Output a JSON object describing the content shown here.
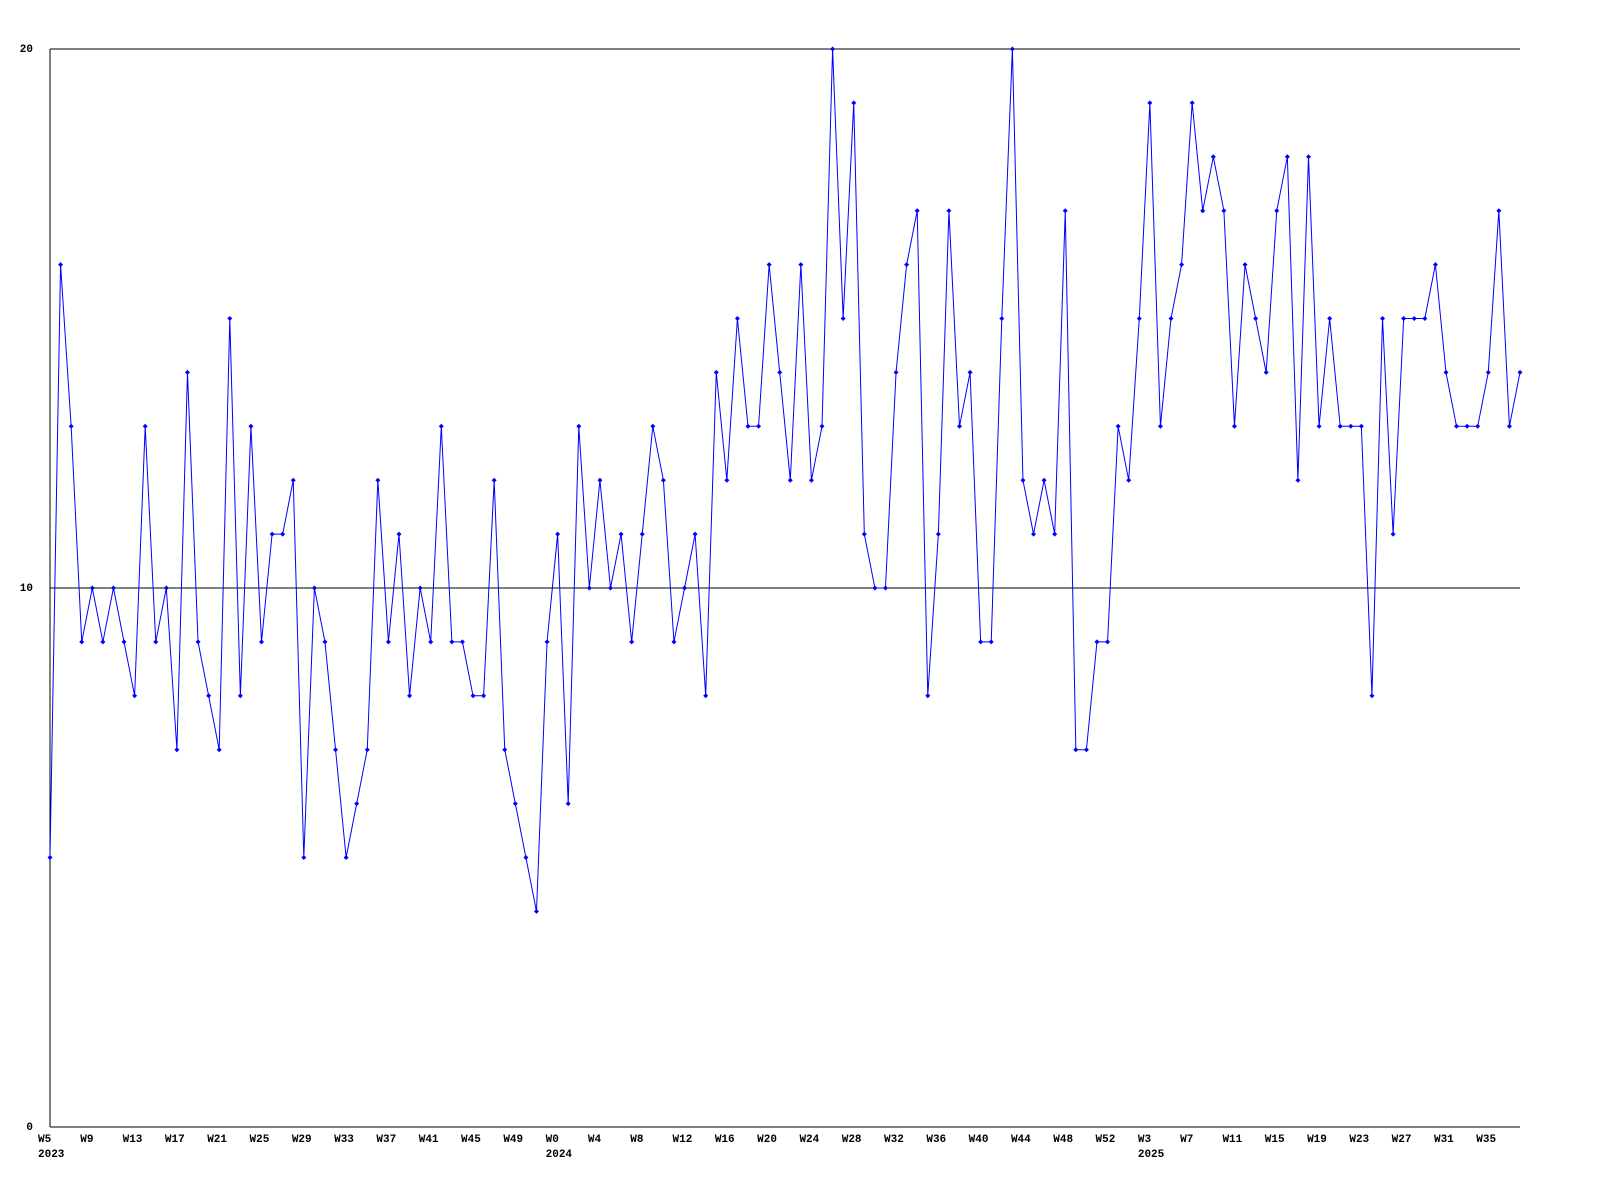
{
  "chart_data": {
    "type": "line",
    "categories": [
      "W5",
      null,
      null,
      null,
      "W9",
      null,
      null,
      null,
      "W13",
      null,
      null,
      null,
      "W17",
      null,
      null,
      null,
      "W21",
      null,
      null,
      null,
      "W25",
      null,
      null,
      null,
      "W29",
      null,
      null,
      null,
      "W33",
      null,
      null,
      null,
      "W37",
      null,
      null,
      null,
      "W41",
      null,
      null,
      null,
      "W45",
      null,
      null,
      null,
      "W49",
      null,
      null,
      null,
      "W0",
      null,
      null,
      null,
      "W4",
      null,
      null,
      null,
      "W8",
      null,
      null,
      null,
      "W12",
      null,
      null,
      null,
      "W16",
      null,
      null,
      null,
      "W20",
      null,
      null,
      null,
      "W24",
      null,
      null,
      null,
      "W28",
      null,
      null,
      null,
      "W32",
      null,
      null,
      null,
      "W36",
      null,
      null,
      null,
      "W40",
      null,
      null,
      null,
      "W44",
      null,
      null,
      null,
      "W48",
      null,
      null,
      null,
      "W52",
      null,
      null,
      null,
      "W3",
      null,
      null,
      null,
      "W7",
      null,
      null,
      null,
      "W11",
      null,
      null,
      null,
      "W15",
      null,
      null,
      null,
      "W19",
      null,
      null,
      null,
      "W23",
      null,
      null,
      null,
      "W27",
      null,
      null,
      null,
      "W31",
      null,
      null,
      null,
      "W35",
      null,
      null,
      null
    ],
    "year_labels": [
      "2023",
      null,
      null,
      null,
      null,
      null,
      null,
      null,
      null,
      null,
      null,
      null,
      null,
      null,
      null,
      null,
      null,
      null,
      null,
      null,
      null,
      null,
      null,
      null,
      null,
      null,
      null,
      null,
      null,
      null,
      null,
      null,
      null,
      null,
      null,
      null,
      null,
      null,
      null,
      null,
      null,
      null,
      null,
      null,
      null,
      null,
      null,
      null,
      "2024",
      null,
      null,
      null,
      null,
      null,
      null,
      null,
      null,
      null,
      null,
      null,
      null,
      null,
      null,
      null,
      null,
      null,
      null,
      null,
      null,
      null,
      null,
      null,
      null,
      null,
      null,
      null,
      null,
      null,
      null,
      null,
      null,
      null,
      null,
      null,
      null,
      null,
      null,
      null,
      null,
      null,
      null,
      null,
      null,
      null,
      null,
      null,
      null,
      null,
      null,
      null,
      null,
      null,
      null,
      null,
      "2025",
      null,
      null,
      null,
      null,
      null,
      null,
      null,
      null,
      null,
      null,
      null,
      null,
      null,
      null,
      null,
      null,
      null,
      null,
      null,
      null,
      null,
      null,
      null,
      null,
      null,
      null,
      null,
      null,
      null,
      null,
      null,
      null,
      null,
      null
    ],
    "values": [
      5,
      16,
      13,
      9,
      10,
      9,
      10,
      9,
      8,
      13,
      9,
      10,
      7,
      14,
      9,
      8,
      7,
      15,
      8,
      13,
      9,
      11,
      11,
      12,
      5,
      10,
      9,
      7,
      5,
      6,
      7,
      12,
      9,
      11,
      8,
      10,
      9,
      13,
      9,
      9,
      8,
      8,
      12,
      7,
      6,
      5,
      4,
      9,
      11,
      6,
      13,
      10,
      12,
      10,
      11,
      9,
      11,
      13,
      12,
      9,
      10,
      11,
      8,
      14,
      12,
      15,
      13,
      13,
      16,
      14,
      12,
      16,
      12,
      13,
      20,
      15,
      19,
      11,
      10,
      10,
      14,
      16,
      17,
      8,
      11,
      17,
      13,
      14,
      9,
      9,
      15,
      20,
      12,
      11,
      12,
      11,
      17,
      7,
      7,
      9,
      9,
      13,
      12,
      15,
      19,
      13,
      15,
      16,
      19,
      17,
      18,
      17,
      13,
      16,
      15,
      14,
      17,
      18,
      12,
      18,
      13,
      15,
      13,
      13,
      13,
      8,
      15,
      11,
      15,
      15,
      15,
      16,
      14,
      13,
      13,
      13,
      14,
      17,
      13,
      14
    ],
    "color": "#0000ff",
    "ylim": [
      0,
      20
    ],
    "yticks": [
      0,
      10,
      20
    ],
    "grid": true
  }
}
